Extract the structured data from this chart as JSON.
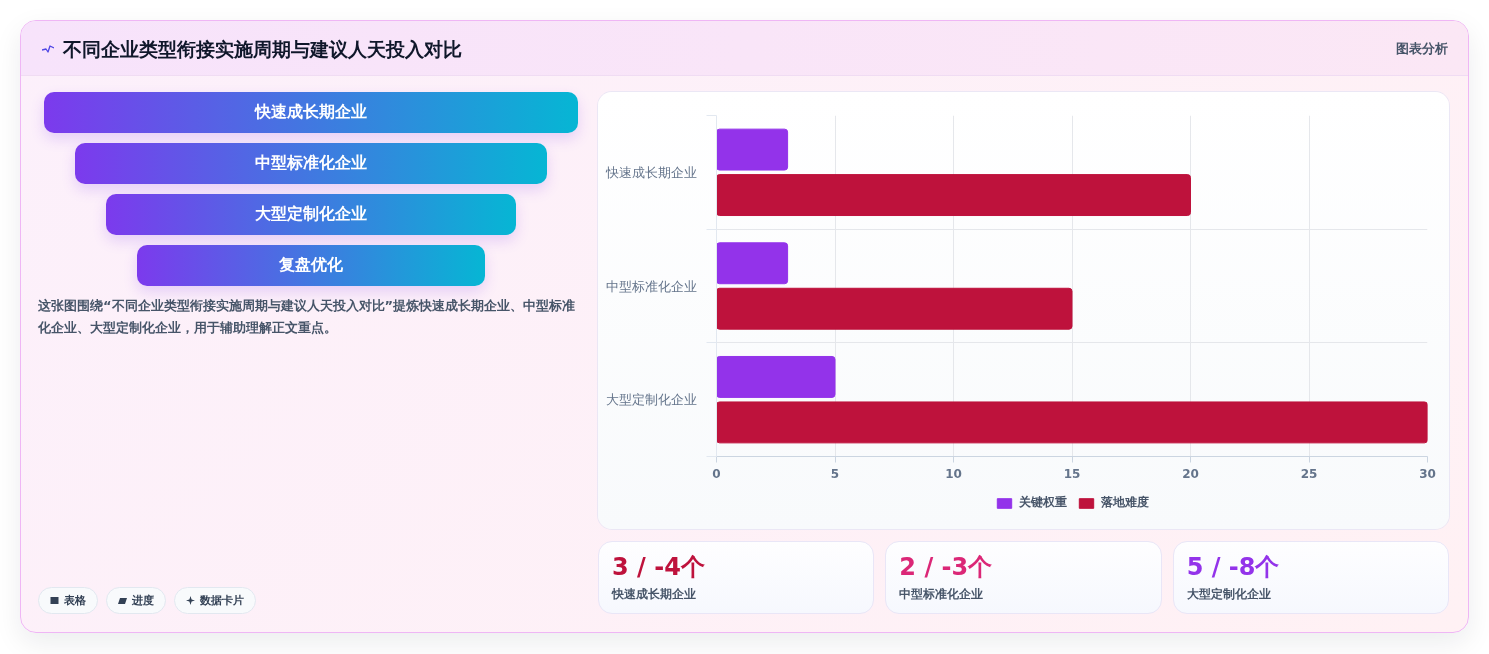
{
  "chart_data": {
    "type": "bar",
    "orientation": "horizontal",
    "title": "不同企业类型衔接实施周期与建议人天投入对比",
    "categories": [
      "快速成长期企业",
      "中型标准化企业",
      "大型定制化企业"
    ],
    "series": [
      {
        "name": "关键权重",
        "color": "#9333ea",
        "values": [
          3,
          3,
          5
        ]
      },
      {
        "name": "落地难度",
        "color": "#be123c",
        "values": [
          20,
          15,
          30
        ]
      }
    ],
    "xlim": [
      0,
      30
    ],
    "xticks": [
      0,
      5,
      10,
      15,
      20,
      25,
      30
    ],
    "grid": true,
    "legend": "bottom",
    "annotations": [
      "图表分析",
      "快速成长期企业",
      "中型标准化企业",
      "大型定制化企业",
      "复盘优化",
      "这张图围绕“不同企业类型衔接实施周期与建议人天投入对比”提炼快速成长期企业、中型标准化企业、大型定制化企业，用于辅助理解正文重点。",
      "表格",
      "进度",
      "数据卡片",
      "3 / -4个",
      "快速成长期企业",
      "2 / -3个",
      "中型标准化企业",
      "5 / -8个",
      "大型定制化企业"
    ]
  }
}
